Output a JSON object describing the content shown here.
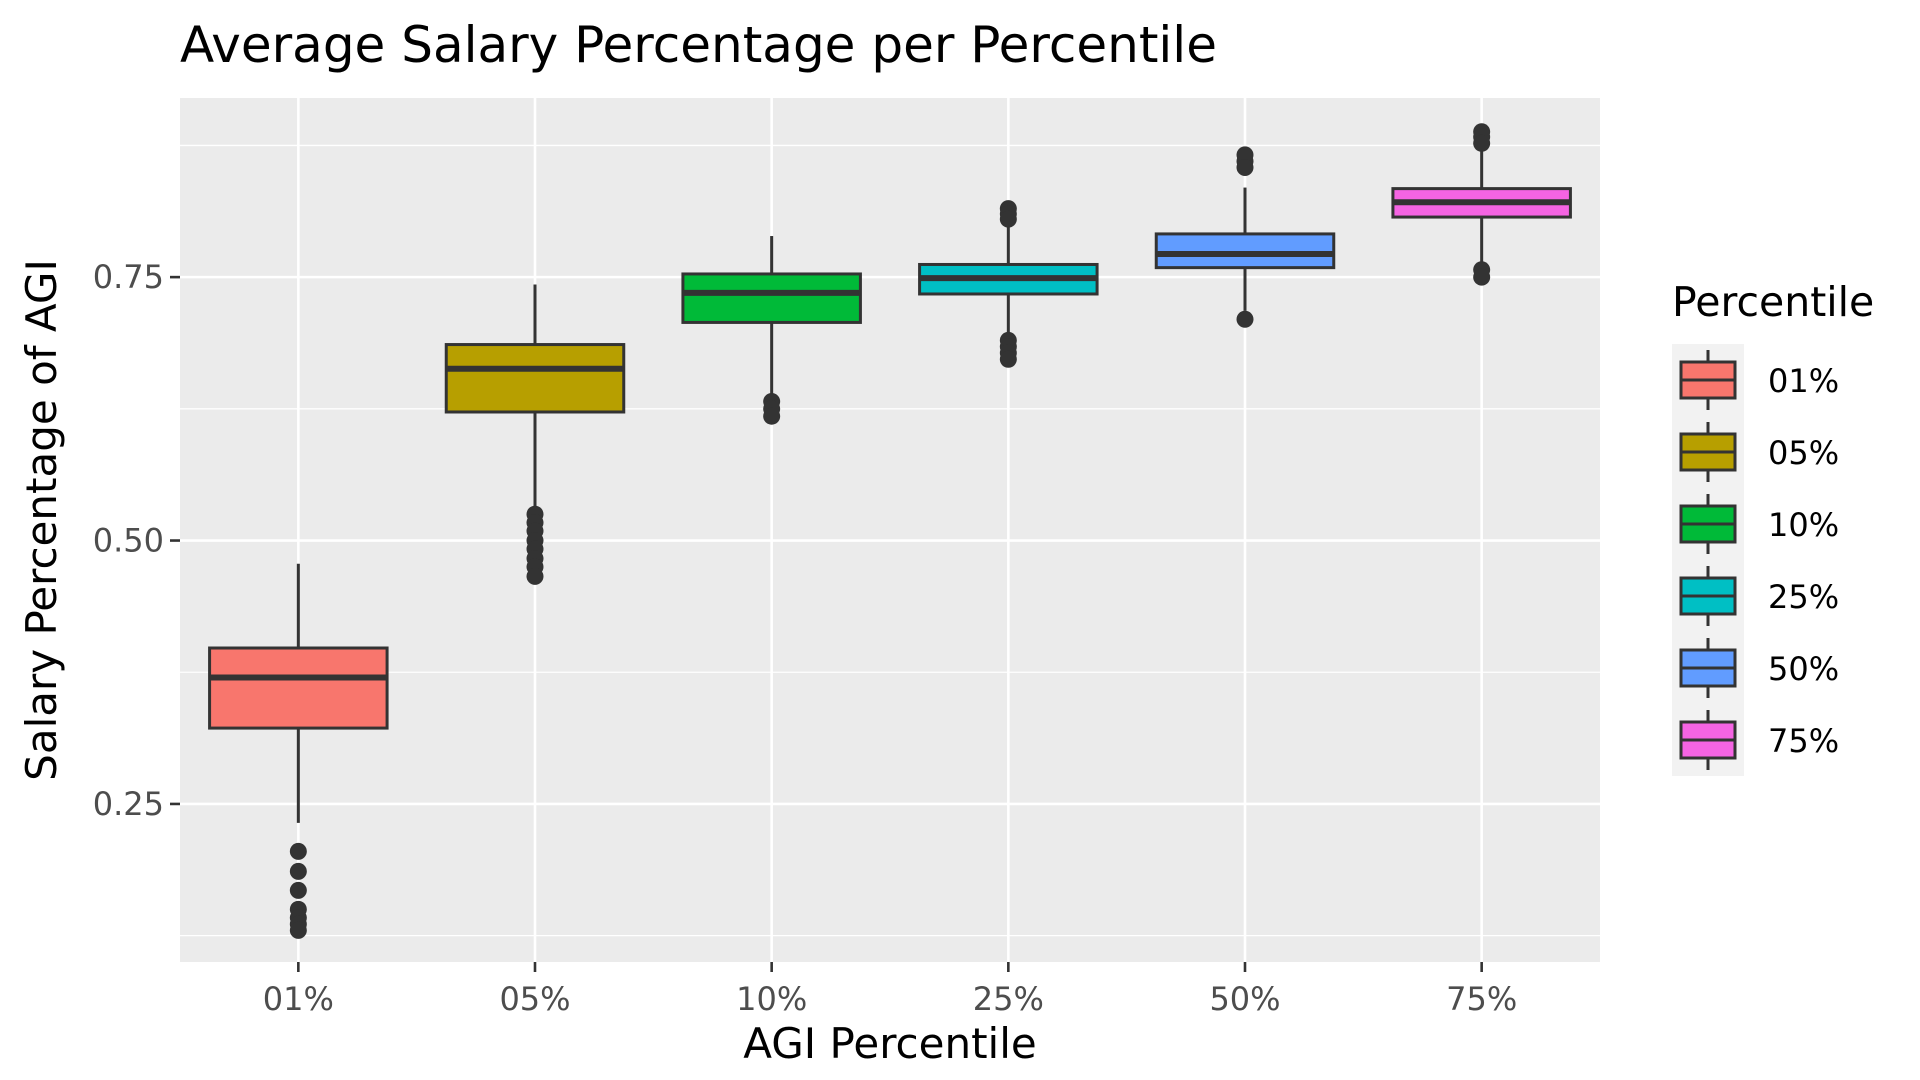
{
  "chart_data": {
    "type": "box",
    "title": "Average Salary Percentage per Percentile",
    "xlabel": "AGI Percentile",
    "ylabel": "Salary Percentage of AGI",
    "ylim": [
      0.1,
      0.92
    ],
    "y_ticks": [
      0.25,
      0.5,
      0.75
    ],
    "y_tick_labels": [
      "0.25",
      "0.50",
      "0.75"
    ],
    "y_minor_ticks": [
      0.125,
      0.375,
      0.625,
      0.875
    ],
    "categories": [
      "01%",
      "05%",
      "10%",
      "25%",
      "50%",
      "75%"
    ],
    "grid": true,
    "background": "#ebebeb",
    "legend": {
      "title": "Percentile",
      "position": "right",
      "entries": [
        "01%",
        "05%",
        "10%",
        "25%",
        "50%",
        "75%"
      ]
    },
    "series": [
      {
        "name": "01%",
        "color": "#f8766d",
        "whisker_low": 0.232,
        "q1": 0.322,
        "median": 0.37,
        "q3": 0.398,
        "whisker_high": 0.478,
        "outliers": [
          0.205,
          0.186,
          0.168,
          0.15,
          0.142,
          0.136,
          0.13
        ]
      },
      {
        "name": "05%",
        "color": "#b79f00",
        "whisker_low": 0.53,
        "q1": 0.622,
        "median": 0.663,
        "q3": 0.686,
        "whisker_high": 0.743,
        "outliers": [
          0.525,
          0.517,
          0.509,
          0.5,
          0.492,
          0.483,
          0.475,
          0.466
        ]
      },
      {
        "name": "10%",
        "color": "#00ba38",
        "whisker_low": 0.638,
        "q1": 0.707,
        "median": 0.735,
        "q3": 0.753,
        "whisker_high": 0.789,
        "outliers": [
          0.632,
          0.625,
          0.618
        ]
      },
      {
        "name": "25%",
        "color": "#00bfc4",
        "whisker_low": 0.695,
        "q1": 0.734,
        "median": 0.749,
        "q3": 0.762,
        "whisker_high": 0.801,
        "outliers": [
          0.815,
          0.81,
          0.805,
          0.69,
          0.684,
          0.678,
          0.672
        ]
      },
      {
        "name": "50%",
        "color": "#619cff",
        "whisker_low": 0.718,
        "q1": 0.759,
        "median": 0.772,
        "q3": 0.791,
        "whisker_high": 0.835,
        "outliers": [
          0.866,
          0.86,
          0.854,
          0.71
        ]
      },
      {
        "name": "75%",
        "color": "#f564e3",
        "whisker_low": 0.762,
        "q1": 0.807,
        "median": 0.821,
        "q3": 0.834,
        "whisker_high": 0.87,
        "outliers": [
          0.888,
          0.883,
          0.877,
          0.757,
          0.75
        ]
      }
    ]
  }
}
